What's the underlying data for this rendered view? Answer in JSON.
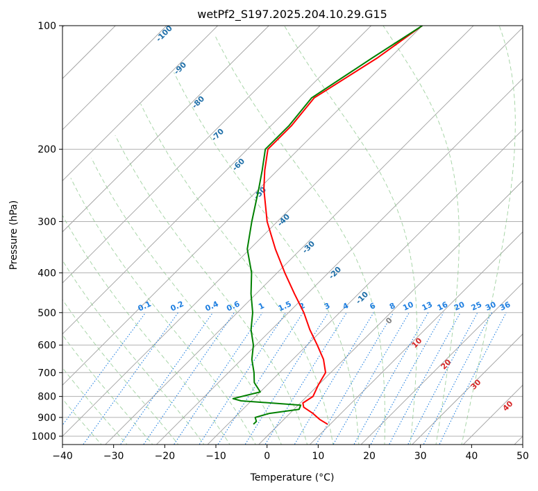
{
  "chart_data": {
    "type": "line",
    "title": "wetPf2_S197.2025.204.10.29.G15",
    "xlabel": "Temperature (°C)",
    "ylabel": "Pressure (hPa)",
    "xlim": [
      -40,
      50
    ],
    "ylim": [
      1050,
      100
    ],
    "y_scale": "log",
    "skew": "skewed temperature isotherms",
    "grid": true,
    "x_ticks": [
      -40,
      -30,
      -20,
      -10,
      0,
      10,
      20,
      30,
      40,
      50
    ],
    "x_tick_labels": [
      "−40",
      "−30",
      "−20",
      "−10",
      "0",
      "10",
      "20",
      "30",
      "40",
      "50"
    ],
    "y_ticks": [
      100,
      200,
      300,
      400,
      500,
      600,
      700,
      800,
      900,
      1000
    ],
    "y_tick_labels": [
      "100",
      "200",
      "300",
      "400",
      "500",
      "600",
      "700",
      "800",
      "900",
      "1000"
    ],
    "series": [
      {
        "color": "#ff0000",
        "points": [
          {
            "p": 100,
            "t": -50
          },
          {
            "p": 120,
            "t": -52.5
          },
          {
            "p": 150,
            "t": -57
          },
          {
            "p": 175,
            "t": -56
          },
          {
            "p": 200,
            "t": -56
          },
          {
            "p": 225,
            "t": -52.5
          },
          {
            "p": 250,
            "t": -49
          },
          {
            "p": 300,
            "t": -42
          },
          {
            "p": 350,
            "t": -35
          },
          {
            "p": 400,
            "t": -28.5
          },
          {
            "p": 450,
            "t": -22.5
          },
          {
            "p": 500,
            "t": -17
          },
          {
            "p": 550,
            "t": -12.5
          },
          {
            "p": 600,
            "t": -8
          },
          {
            "p": 650,
            "t": -4
          },
          {
            "p": 700,
            "t": -1
          },
          {
            "p": 750,
            "t": 0
          },
          {
            "p": 800,
            "t": 1.2
          },
          {
            "p": 830,
            "t": 0.5
          },
          {
            "p": 850,
            "t": 1.5
          },
          {
            "p": 880,
            "t": 4.5
          },
          {
            "p": 910,
            "t": 7
          },
          {
            "p": 935,
            "t": 9.5
          }
        ]
      },
      {
        "color": "#008000",
        "points": [
          {
            "p": 100,
            "t": -50
          },
          {
            "p": 120,
            "t": -53.5
          },
          {
            "p": 150,
            "t": -57.5
          },
          {
            "p": 175,
            "t": -56.5
          },
          {
            "p": 200,
            "t": -56.5
          },
          {
            "p": 225,
            "t": -53
          },
          {
            "p": 250,
            "t": -50
          },
          {
            "p": 300,
            "t": -45
          },
          {
            "p": 350,
            "t": -40.5
          },
          {
            "p": 400,
            "t": -35
          },
          {
            "p": 450,
            "t": -31
          },
          {
            "p": 500,
            "t": -27
          },
          {
            "p": 550,
            "t": -24
          },
          {
            "p": 600,
            "t": -20.5
          },
          {
            "p": 650,
            "t": -18
          },
          {
            "p": 700,
            "t": -15
          },
          {
            "p": 740,
            "t": -13
          },
          {
            "p": 780,
            "t": -10
          },
          {
            "p": 810,
            "t": -14
          },
          {
            "p": 820,
            "t": -12
          },
          {
            "p": 840,
            "t": 0.5
          },
          {
            "p": 860,
            "t": 1
          },
          {
            "p": 880,
            "t": -4
          },
          {
            "p": 900,
            "t": -6
          },
          {
            "p": 920,
            "t": -5
          },
          {
            "p": 935,
            "t": -5
          }
        ]
      }
    ],
    "dry_adiabat_labels": [
      "-100",
      "-90",
      "-80",
      "-70",
      "-60",
      "-50",
      "-40",
      "-30",
      "-20",
      "-10",
      "0",
      "10",
      "20",
      "30",
      "40"
    ],
    "mixing_ratio_labels": [
      "0.1",
      "0.2",
      "0.4",
      "0.6",
      "1",
      "1.5",
      "2",
      "3",
      "4",
      "6",
      "8",
      "10",
      "13",
      "16",
      "20",
      "25",
      "30",
      "36"
    ],
    "mixing_ratio_values": [
      0.1,
      0.2,
      0.4,
      0.6,
      1,
      1.5,
      2,
      3,
      4,
      6,
      8,
      10,
      13,
      16,
      20,
      25,
      30,
      36
    ],
    "colors": {
      "temperature": "#ff0000",
      "dewpoint": "#008000",
      "dry_adiabat": "#f4a582",
      "moist_adiabat": "#8fc98f",
      "mixing_ratio": "#1f7fe0",
      "cold_label": "#1f6fa8",
      "warm_label": "#d62728",
      "zero_label": "#7f7f7f",
      "isotherm": "#a0a0a0",
      "grid": "#b0b0b0"
    }
  }
}
